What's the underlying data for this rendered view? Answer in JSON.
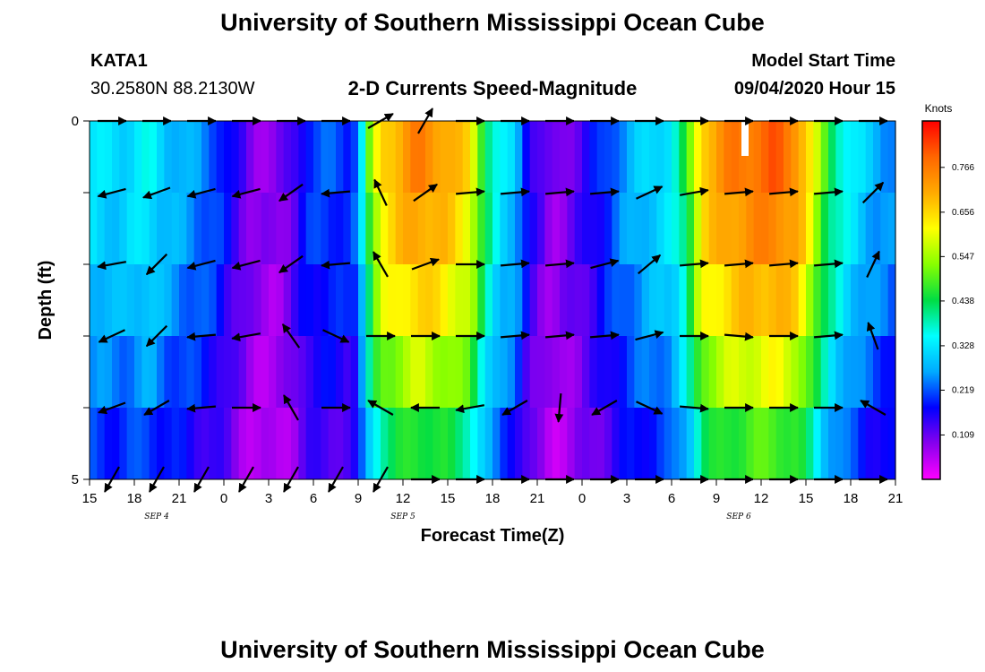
{
  "page": {
    "title_top": "University of Southern Mississippi Ocean Cube",
    "title_bottom": "University of Southern Mississippi Ocean Cube",
    "station": "KATA1",
    "coords": "30.2580N 88.2130W",
    "center_title": "2-D Currents Speed-Magnitude",
    "model_label": "Model Start Time",
    "model_time": "09/04/2020 Hour 15"
  },
  "colors": {
    "stops": [
      "#ff00ff",
      "#8800ee",
      "#0000ff",
      "#00aaff",
      "#00ffff",
      "#00dd44",
      "#88ff00",
      "#ffff00",
      "#ffaa00",
      "#ff6600",
      "#ff0000"
    ],
    "arrow": "#000000"
  },
  "chart_data": {
    "type": "heatmap",
    "title": "2-D Currents Speed-Magnitude",
    "xlabel": "Forecast Time(Z)",
    "ylabel": "Depth (ft)",
    "x_tick_labels": [
      "15",
      "18",
      "21",
      "0",
      "3",
      "6",
      "9",
      "12",
      "15",
      "18",
      "21",
      "0",
      "3",
      "6",
      "9",
      "12",
      "15",
      "18",
      "21"
    ],
    "x_tick_hours": [
      0,
      3,
      6,
      9,
      12,
      15,
      18,
      21,
      24,
      27,
      30,
      33,
      36,
      39,
      42,
      45,
      48,
      51,
      54
    ],
    "date_labels": [
      {
        "text": "SEP 4",
        "hour": 4.5
      },
      {
        "text": "SEP 5",
        "hour": 21
      },
      {
        "text": "SEP 6",
        "hour": 43.5
      }
    ],
    "y_tick_labels": [
      "0",
      "",
      "",
      "",
      "",
      "5"
    ],
    "ylim": [
      0,
      5
    ],
    "xlim": [
      0,
      54
    ],
    "colorbar": {
      "unit": "Knots",
      "ticks": [
        0.766,
        0.656,
        0.547,
        0.438,
        0.328,
        0.219,
        0.109
      ],
      "range": [
        0.0,
        0.88
      ]
    },
    "depth_bands": [
      0,
      1,
      2,
      3,
      4,
      5
    ],
    "speed_profile": [
      {
        "hour": 0,
        "v": 0.33
      },
      {
        "hour": 2,
        "v": 0.31
      },
      {
        "hour": 4,
        "v": 0.35
      },
      {
        "hour": 5,
        "v": 0.3
      },
      {
        "hour": 7,
        "v": 0.26
      },
      {
        "hour": 8.5,
        "v": 0.22
      },
      {
        "hour": 9.5,
        "v": 0.16
      },
      {
        "hour": 11,
        "v": 0.09
      },
      {
        "hour": 12.5,
        "v": 0.08
      },
      {
        "hour": 13.5,
        "v": 0.12
      },
      {
        "hour": 14.5,
        "v": 0.2
      },
      {
        "hour": 16,
        "v": 0.22
      },
      {
        "hour": 17.5,
        "v": 0.2
      },
      {
        "hour": 18,
        "v": 0.25
      },
      {
        "hour": 18.6,
        "v": 0.46
      },
      {
        "hour": 19.5,
        "v": 0.66
      },
      {
        "hour": 22,
        "v": 0.76
      },
      {
        "hour": 24,
        "v": 0.71
      },
      {
        "hour": 25.5,
        "v": 0.64
      },
      {
        "hour": 26.5,
        "v": 0.45
      },
      {
        "hour": 27.5,
        "v": 0.33
      },
      {
        "hour": 28.5,
        "v": 0.3
      },
      {
        "hour": 29.5,
        "v": 0.16
      },
      {
        "hour": 31,
        "v": 0.08
      },
      {
        "hour": 32.5,
        "v": 0.12
      },
      {
        "hour": 34,
        "v": 0.18
      },
      {
        "hour": 35.5,
        "v": 0.25
      },
      {
        "hour": 37,
        "v": 0.3
      },
      {
        "hour": 39,
        "v": 0.34
      },
      {
        "hour": 40,
        "v": 0.45
      },
      {
        "hour": 41,
        "v": 0.68
      },
      {
        "hour": 43,
        "v": 0.76
      },
      {
        "hour": 46,
        "v": 0.8
      },
      {
        "hour": 47.5,
        "v": 0.74
      },
      {
        "hour": 48.5,
        "v": 0.6
      },
      {
        "hour": 49.5,
        "v": 0.45
      },
      {
        "hour": 51,
        "v": 0.34
      },
      {
        "hour": 52.5,
        "v": 0.28
      },
      {
        "hour": 54,
        "v": 0.25
      }
    ],
    "depth_factor": [
      1.0,
      0.95,
      0.88,
      0.76,
      0.62
    ],
    "arrow_hours": [
      1.5,
      4.5,
      7.5,
      10.5,
      13.5,
      16.5,
      19.5,
      22.5,
      25.5,
      28.5,
      31.5,
      34.5,
      37.5,
      40.5,
      43.5,
      46.5,
      49.5,
      52.5
    ],
    "arrow_depths": [
      0,
      1,
      2,
      3,
      4,
      5
    ],
    "arrow_angles_deg": [
      [
        0,
        0,
        0,
        0,
        0,
        0,
        30,
        60,
        0,
        0,
        0,
        0,
        0,
        0,
        0,
        0,
        0,
        0
      ],
      [
        -165,
        -160,
        -165,
        -165,
        -145,
        -175,
        115,
        35,
        5,
        5,
        5,
        5,
        25,
        10,
        5,
        5,
        5,
        45
      ],
      [
        -170,
        -135,
        -165,
        -165,
        -145,
        -175,
        120,
        20,
        0,
        5,
        5,
        15,
        40,
        5,
        5,
        5,
        5,
        65
      ],
      [
        -155,
        -135,
        -175,
        -170,
        125,
        -25,
        0,
        0,
        0,
        5,
        5,
        5,
        15,
        0,
        -5,
        0,
        5,
        110
      ],
      [
        -160,
        -150,
        -175,
        0,
        120,
        0,
        150,
        180,
        -170,
        -150,
        -95,
        -150,
        -25,
        -5,
        0,
        0,
        0,
        150
      ],
      [
        -120,
        -120,
        -120,
        -120,
        -120,
        -120,
        -120,
        0,
        0,
        0,
        0,
        0,
        0,
        0,
        0,
        0,
        0,
        0
      ]
    ]
  }
}
